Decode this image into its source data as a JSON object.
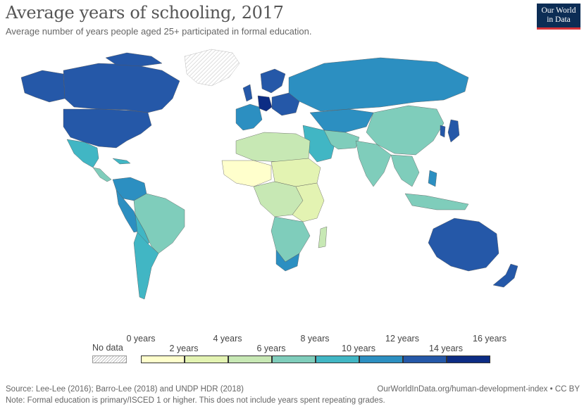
{
  "title": "Average years of schooling, 2017",
  "subtitle": "Average number of years people aged 25+ participated in formal education.",
  "logo": {
    "line1": "Our World",
    "line2": "in Data"
  },
  "legend": {
    "no_data_label": "No data",
    "ticks_upper": [
      "0 years",
      "4 years",
      "8 years",
      "12 years",
      "16 years"
    ],
    "ticks_lower": [
      "2 years",
      "6 years",
      "10 years",
      "14 years"
    ],
    "colors": [
      "#ffffcc",
      "#e3f3b2",
      "#c7e8b4",
      "#7fcdbb",
      "#41b6c4",
      "#2c8fc1",
      "#2558a8",
      "#0c2c84"
    ]
  },
  "footer": {
    "source": "Source: Lee-Lee (2016); Barro-Lee (2018) and UNDP HDR (2018)",
    "note": "Note: Formal education is primary/ISCED 1 or higher. This does not include years spent repeating grades.",
    "link": "OurWorldInData.org/human-development-index • CC BY"
  }
}
